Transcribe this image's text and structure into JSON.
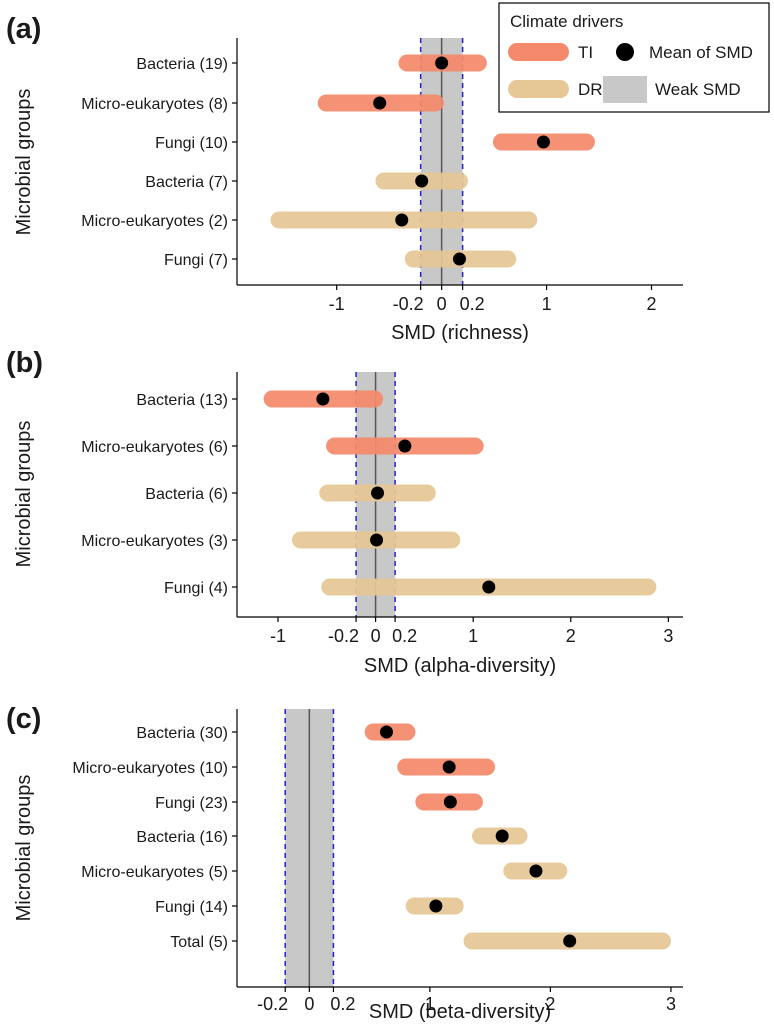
{
  "legend": {
    "title": "Climate drivers",
    "items": [
      {
        "label": "TI",
        "kind": "bar",
        "color": "#f4896b"
      },
      {
        "label": "DR",
        "kind": "bar",
        "color": "#e6c796"
      },
      {
        "label": "Mean of SMD",
        "kind": "dot",
        "color": "#000000"
      },
      {
        "label": "Weak SMD",
        "kind": "band",
        "color": "#c8c8c8"
      }
    ]
  },
  "colors": {
    "TI": "#f4896b",
    "DR": "#e6c796",
    "mean_dot": "#000000",
    "weak_band": "#c8c8c8",
    "weak_band_edge": "#2222cc"
  },
  "chart_data": [
    {
      "type": "interval",
      "panel_label": "(a)",
      "title": "",
      "xlabel": "SMD (richness)",
      "ylabel": "Microbial groups",
      "xlim": [
        -1.95,
        2.3
      ],
      "x_ticks": [
        -1,
        -0.2,
        0,
        0.2,
        1,
        2
      ],
      "x_tick_labels": [
        "-1",
        "-0.2",
        "0",
        "0.2",
        "1",
        "2"
      ],
      "weak_band": [
        -0.2,
        0.2
      ],
      "rows": [
        {
          "label": "Bacteria (19)",
          "driver": "TI",
          "low": -0.33,
          "high": 0.35,
          "mean": 0.0
        },
        {
          "label": "Micro-eukaryotes (8)",
          "driver": "TI",
          "low": -1.1,
          "high": -0.06,
          "mean": -0.59
        },
        {
          "label": "Fungi (10)",
          "driver": "TI",
          "low": 0.57,
          "high": 1.38,
          "mean": 0.97
        },
        {
          "label": "Bacteria (7)",
          "driver": "DR",
          "low": -0.55,
          "high": 0.17,
          "mean": -0.19
        },
        {
          "label": "Micro-eukaryotes (2)",
          "driver": "DR",
          "low": -1.55,
          "high": 0.83,
          "mean": -0.38
        },
        {
          "label": "Fungi (7)",
          "driver": "DR",
          "low": -0.27,
          "high": 0.63,
          "mean": 0.17
        }
      ]
    },
    {
      "type": "interval",
      "panel_label": "(b)",
      "title": "",
      "xlabel": "SMD (alpha-diversity)",
      "ylabel": "Microbial groups",
      "xlim": [
        -1.42,
        3.15
      ],
      "x_ticks": [
        -1,
        -0.2,
        0,
        0.2,
        1,
        2,
        3
      ],
      "x_tick_labels": [
        "-1",
        "-0.2",
        "0",
        "0.2",
        "1",
        "2",
        "3"
      ],
      "weak_band": [
        -0.2,
        0.2
      ],
      "rows": [
        {
          "label": "Bacteria (13)",
          "driver": "TI",
          "low": -1.06,
          "high": -0.01,
          "mean": -0.54
        },
        {
          "label": "Micro-eukaryotes (6)",
          "driver": "TI",
          "low": -0.42,
          "high": 1.02,
          "mean": 0.3
        },
        {
          "label": "Bacteria (6)",
          "driver": "DR",
          "low": -0.49,
          "high": 0.53,
          "mean": 0.02
        },
        {
          "label": "Micro-eukaryotes (3)",
          "driver": "DR",
          "low": -0.77,
          "high": 0.78,
          "mean": 0.01
        },
        {
          "label": "Fungi (4)",
          "driver": "DR",
          "low": -0.47,
          "high": 2.79,
          "mean": 1.16
        }
      ]
    },
    {
      "type": "interval",
      "panel_label": "(c)",
      "title": "",
      "xlabel": "SMD (beta-diversity)",
      "ylabel": "Microbial groups",
      "xlim": [
        -0.6,
        3.1
      ],
      "x_ticks": [
        -0.2,
        0,
        0.2,
        1,
        2,
        3
      ],
      "x_tick_labels": [
        "-0.2",
        "0",
        "0.2",
        "1",
        "2",
        "3"
      ],
      "weak_band": [
        -0.2,
        0.2
      ],
      "rows": [
        {
          "label": "Bacteria (30)",
          "driver": "TI",
          "low": 0.53,
          "high": 0.81,
          "mean": 0.64
        },
        {
          "label": "Micro-eukaryotes (10)",
          "driver": "TI",
          "low": 0.8,
          "high": 1.47,
          "mean": 1.16
        },
        {
          "label": "Fungi (23)",
          "driver": "TI",
          "low": 0.95,
          "high": 1.37,
          "mean": 1.17
        },
        {
          "label": "Bacteria (16)",
          "driver": "DR",
          "low": 1.42,
          "high": 1.74,
          "mean": 1.6
        },
        {
          "label": "Micro-eukaryotes (5)",
          "driver": "DR",
          "low": 1.68,
          "high": 2.07,
          "mean": 1.88
        },
        {
          "label": "Fungi (14)",
          "driver": "DR",
          "low": 0.87,
          "high": 1.21,
          "mean": 1.05
        },
        {
          "label": "Total (5)",
          "driver": "DR",
          "low": 1.35,
          "high": 2.93,
          "mean": 2.16
        }
      ]
    }
  ]
}
